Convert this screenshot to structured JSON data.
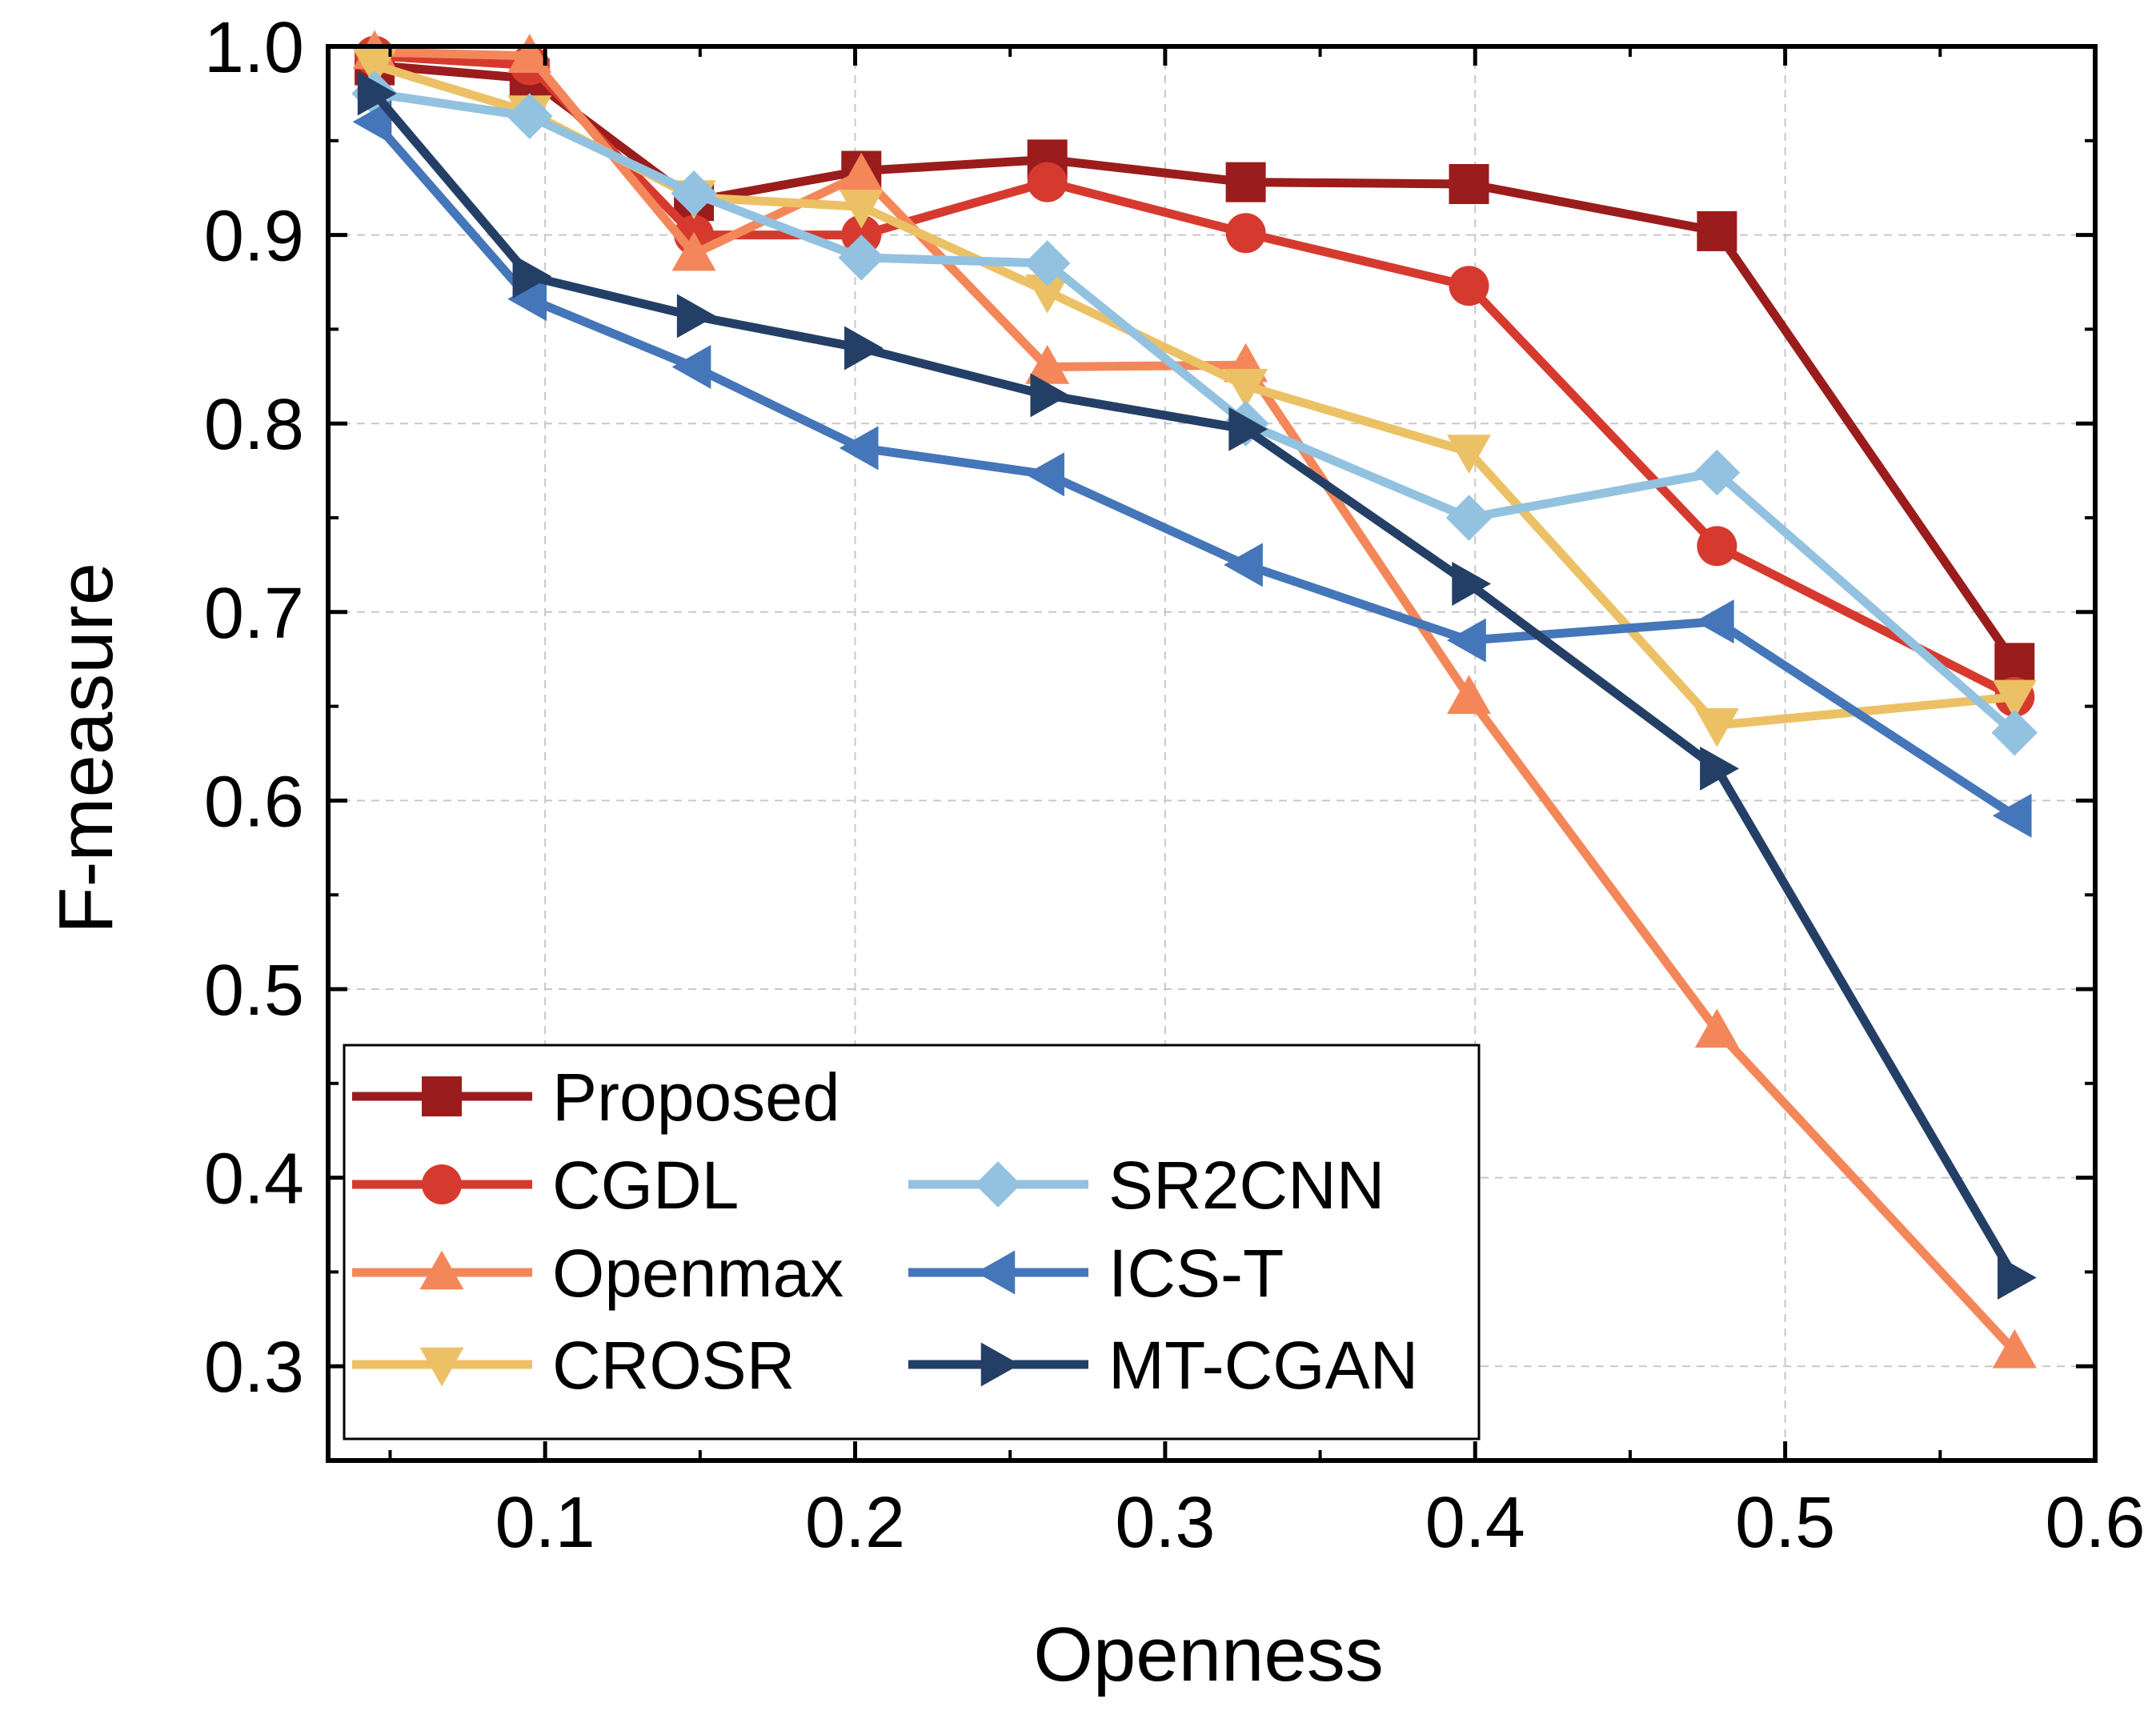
{
  "chart_data": {
    "type": "line",
    "title": "",
    "xlabel": "Openness",
    "ylabel": "F-measure",
    "xlim": [
      0.03,
      0.6
    ],
    "ylim": [
      0.25,
      1.0
    ],
    "x_ticks": [
      0.1,
      0.2,
      0.3,
      0.4,
      0.5,
      0.6
    ],
    "x_tick_labels": [
      "0.1",
      "0.2",
      "0.3",
      "0.4",
      "0.5",
      "0.6"
    ],
    "y_ticks": [
      0.3,
      0.4,
      0.5,
      0.6,
      0.7,
      0.8,
      0.9,
      1.0
    ],
    "y_tick_labels": [
      "0.3",
      "0.4",
      "0.5",
      "0.6",
      "0.7",
      "0.8",
      "0.9",
      "1.0"
    ],
    "grid": true,
    "legend_position": "bottom-left",
    "x": [
      0.045,
      0.095,
      0.148,
      0.202,
      0.262,
      0.326,
      0.398,
      0.478,
      0.574
    ],
    "series": [
      {
        "name": "Proposed",
        "color": "#9b1c1c",
        "marker": "square",
        "values": [
          0.99,
          0.983,
          0.918,
          0.934,
          0.94,
          0.928,
          0.927,
          0.902,
          0.673
        ]
      },
      {
        "name": "CGDL",
        "color": "#d63a2f",
        "marker": "circle",
        "values": [
          0.995,
          0.99,
          0.9,
          0.9,
          0.928,
          0.901,
          0.873,
          0.735,
          0.655
        ]
      },
      {
        "name": "Openmax",
        "color": "#f4875a",
        "marker": "triangle-up",
        "values": [
          0.997,
          0.995,
          0.89,
          0.932,
          0.83,
          0.831,
          0.655,
          0.478,
          0.308
        ]
      },
      {
        "name": "CROSR",
        "color": "#ecc166",
        "marker": "triangle-down",
        "values": [
          0.99,
          0.965,
          0.92,
          0.915,
          0.87,
          0.82,
          0.785,
          0.64,
          0.655
        ]
      },
      {
        "name": "SR2CNN",
        "color": "#92c2e0",
        "marker": "diamond",
        "values": [
          0.975,
          0.963,
          0.922,
          0.888,
          0.885,
          0.8,
          0.75,
          0.774,
          0.636
        ]
      },
      {
        "name": "ICS-T",
        "color": "#4476b9",
        "marker": "triangle-left",
        "values": [
          0.96,
          0.866,
          0.83,
          0.787,
          0.773,
          0.725,
          0.685,
          0.695,
          0.592
        ]
      },
      {
        "name": "MT-CGAN",
        "color": "#243f66",
        "marker": "triangle-right",
        "values": [
          0.975,
          0.878,
          0.857,
          0.84,
          0.815,
          0.797,
          0.715,
          0.617,
          0.347
        ]
      }
    ]
  }
}
